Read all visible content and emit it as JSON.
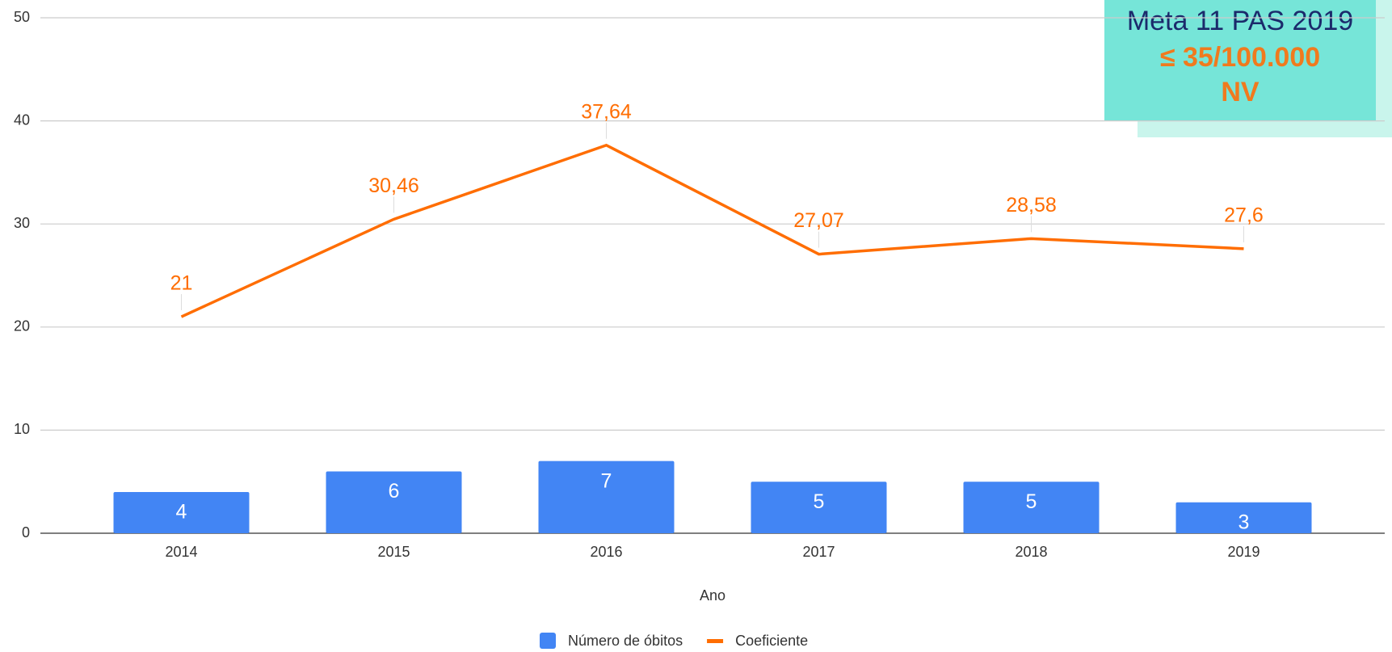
{
  "chart_data": {
    "type": "combo",
    "x_label": "Ano",
    "categories": [
      "2014",
      "2015",
      "2016",
      "2017",
      "2018",
      "2019"
    ],
    "series": [
      {
        "name": "Número de óbitos",
        "type": "bar",
        "color": "#4285f4",
        "values": [
          4,
          6,
          7,
          5,
          5,
          3
        ]
      },
      {
        "name": "Coeficiente",
        "type": "line",
        "color": "#ff6d01",
        "values": [
          21,
          30.46,
          37.64,
          27.07,
          28.58,
          27.6
        ],
        "value_labels": [
          "21",
          "30,46",
          "37,64",
          "27,07",
          "28,58",
          "27,6"
        ]
      }
    ],
    "ylim": [
      0,
      50
    ],
    "yticks": [
      0,
      10,
      20,
      30,
      40,
      50
    ],
    "grid": true,
    "legend": "bottom",
    "annotation": [
      "Meta 11 PAS 2019",
      "≤ 35/100.000",
      "NV"
    ]
  }
}
